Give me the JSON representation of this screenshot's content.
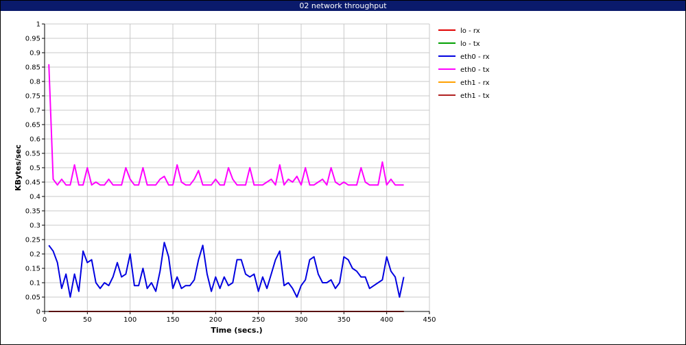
{
  "window": {
    "title": "02 network throughput"
  },
  "chart_data": {
    "type": "line",
    "title": "02 network throughput",
    "xlabel": "Time (secs.)",
    "ylabel": "KBytes/sec",
    "xlim": [
      0,
      450
    ],
    "ylim": [
      0,
      1
    ],
    "xticks": [
      0,
      50,
      100,
      150,
      200,
      250,
      300,
      350,
      400,
      450
    ],
    "yticks": [
      0,
      0.05,
      0.1,
      0.15,
      0.2,
      0.25,
      0.3,
      0.35,
      0.4,
      0.45,
      0.5,
      0.55,
      0.6,
      0.65,
      0.7,
      0.75,
      0.8,
      0.85,
      0.9,
      0.95,
      1
    ],
    "grid": true,
    "legend_position": "right",
    "x": [
      5,
      10,
      15,
      20,
      25,
      30,
      35,
      40,
      45,
      50,
      55,
      60,
      65,
      70,
      75,
      80,
      85,
      90,
      95,
      100,
      105,
      110,
      115,
      120,
      125,
      130,
      135,
      140,
      145,
      150,
      155,
      160,
      165,
      170,
      175,
      180,
      185,
      190,
      195,
      200,
      205,
      210,
      215,
      220,
      225,
      230,
      235,
      240,
      245,
      250,
      255,
      260,
      265,
      270,
      275,
      280,
      285,
      290,
      295,
      300,
      305,
      310,
      315,
      320,
      325,
      330,
      335,
      340,
      345,
      350,
      355,
      360,
      365,
      370,
      375,
      380,
      385,
      390,
      395,
      400,
      405,
      410,
      415,
      420
    ],
    "series": [
      {
        "name": "lo - rx",
        "color": "#e00000",
        "values": [
          0,
          0,
          0,
          0,
          0,
          0,
          0,
          0,
          0,
          0,
          0,
          0,
          0,
          0,
          0,
          0,
          0,
          0,
          0,
          0,
          0,
          0,
          0,
          0,
          0,
          0,
          0,
          0,
          0,
          0,
          0,
          0,
          0,
          0,
          0,
          0,
          0,
          0,
          0,
          0,
          0,
          0,
          0,
          0,
          0,
          0,
          0,
          0,
          0,
          0,
          0,
          0,
          0,
          0,
          0,
          0,
          0,
          0,
          0,
          0,
          0,
          0,
          0,
          0,
          0,
          0,
          0,
          0,
          0,
          0,
          0,
          0,
          0,
          0,
          0,
          0,
          0,
          0,
          0,
          0,
          0,
          0,
          0,
          0
        ]
      },
      {
        "name": "lo - tx",
        "color": "#00a000",
        "values": [
          0,
          0,
          0,
          0,
          0,
          0,
          0,
          0,
          0,
          0,
          0,
          0,
          0,
          0,
          0,
          0,
          0,
          0,
          0,
          0,
          0,
          0,
          0,
          0,
          0,
          0,
          0,
          0,
          0,
          0,
          0,
          0,
          0,
          0,
          0,
          0,
          0,
          0,
          0,
          0,
          0,
          0,
          0,
          0,
          0,
          0,
          0,
          0,
          0,
          0,
          0,
          0,
          0,
          0,
          0,
          0,
          0,
          0,
          0,
          0,
          0,
          0,
          0,
          0,
          0,
          0,
          0,
          0,
          0,
          0,
          0,
          0,
          0,
          0,
          0,
          0,
          0,
          0,
          0,
          0,
          0,
          0,
          0,
          0
        ]
      },
      {
        "name": "eth0 - rx",
        "color": "#0000e0",
        "values": [
          0.23,
          0.21,
          0.17,
          0.08,
          0.13,
          0.05,
          0.13,
          0.07,
          0.21,
          0.17,
          0.18,
          0.1,
          0.08,
          0.1,
          0.09,
          0.12,
          0.17,
          0.12,
          0.13,
          0.2,
          0.09,
          0.09,
          0.15,
          0.08,
          0.1,
          0.07,
          0.14,
          0.24,
          0.19,
          0.08,
          0.12,
          0.08,
          0.09,
          0.09,
          0.11,
          0.18,
          0.23,
          0.13,
          0.07,
          0.12,
          0.08,
          0.12,
          0.09,
          0.1,
          0.18,
          0.18,
          0.13,
          0.12,
          0.13,
          0.07,
          0.12,
          0.08,
          0.13,
          0.18,
          0.21,
          0.09,
          0.1,
          0.08,
          0.05,
          0.09,
          0.11,
          0.18,
          0.19,
          0.13,
          0.1,
          0.1,
          0.11,
          0.08,
          0.1,
          0.19,
          0.18,
          0.15,
          0.14,
          0.12,
          0.12,
          0.08,
          0.09,
          0.1,
          0.11,
          0.19,
          0.14,
          0.12,
          0.05,
          0.12
        ]
      },
      {
        "name": "eth0 - tx",
        "color": "#ff00ff",
        "values": [
          0.86,
          0.46,
          0.44,
          0.46,
          0.44,
          0.44,
          0.51,
          0.44,
          0.44,
          0.5,
          0.44,
          0.45,
          0.44,
          0.44,
          0.46,
          0.44,
          0.44,
          0.44,
          0.5,
          0.46,
          0.44,
          0.44,
          0.5,
          0.44,
          0.44,
          0.44,
          0.46,
          0.47,
          0.44,
          0.44,
          0.51,
          0.45,
          0.44,
          0.44,
          0.46,
          0.49,
          0.44,
          0.44,
          0.44,
          0.46,
          0.44,
          0.44,
          0.5,
          0.46,
          0.44,
          0.44,
          0.44,
          0.5,
          0.44,
          0.44,
          0.44,
          0.45,
          0.46,
          0.44,
          0.51,
          0.44,
          0.46,
          0.45,
          0.47,
          0.44,
          0.5,
          0.44,
          0.44,
          0.45,
          0.46,
          0.44,
          0.5,
          0.45,
          0.44,
          0.45,
          0.44,
          0.44,
          0.44,
          0.5,
          0.45,
          0.44,
          0.44,
          0.44,
          0.52,
          0.44,
          0.46,
          0.44,
          0.44,
          0.44
        ]
      },
      {
        "name": "eth1 - rx",
        "color": "#ffa000",
        "values": [
          0,
          0,
          0,
          0,
          0,
          0,
          0,
          0,
          0,
          0,
          0,
          0,
          0,
          0,
          0,
          0,
          0,
          0,
          0,
          0,
          0,
          0,
          0,
          0,
          0,
          0,
          0,
          0,
          0,
          0,
          0,
          0,
          0,
          0,
          0,
          0,
          0,
          0,
          0,
          0,
          0,
          0,
          0,
          0,
          0,
          0,
          0,
          0,
          0,
          0,
          0,
          0,
          0,
          0,
          0,
          0,
          0,
          0,
          0,
          0,
          0,
          0,
          0,
          0,
          0,
          0,
          0,
          0,
          0,
          0,
          0,
          0,
          0,
          0,
          0,
          0,
          0,
          0,
          0,
          0,
          0,
          0,
          0,
          0
        ]
      },
      {
        "name": "eth1 - tx",
        "color": "#b02020",
        "values": [
          0,
          0,
          0,
          0,
          0,
          0,
          0,
          0,
          0,
          0,
          0,
          0,
          0,
          0,
          0,
          0,
          0,
          0,
          0,
          0,
          0,
          0,
          0,
          0,
          0,
          0,
          0,
          0,
          0,
          0,
          0,
          0,
          0,
          0,
          0,
          0,
          0,
          0,
          0,
          0,
          0,
          0,
          0,
          0,
          0,
          0,
          0,
          0,
          0,
          0,
          0,
          0,
          0,
          0,
          0,
          0,
          0,
          0,
          0,
          0,
          0,
          0,
          0,
          0,
          0,
          0,
          0,
          0,
          0,
          0,
          0,
          0,
          0,
          0,
          0,
          0,
          0,
          0,
          0,
          0,
          0,
          0,
          0,
          0
        ]
      }
    ]
  }
}
